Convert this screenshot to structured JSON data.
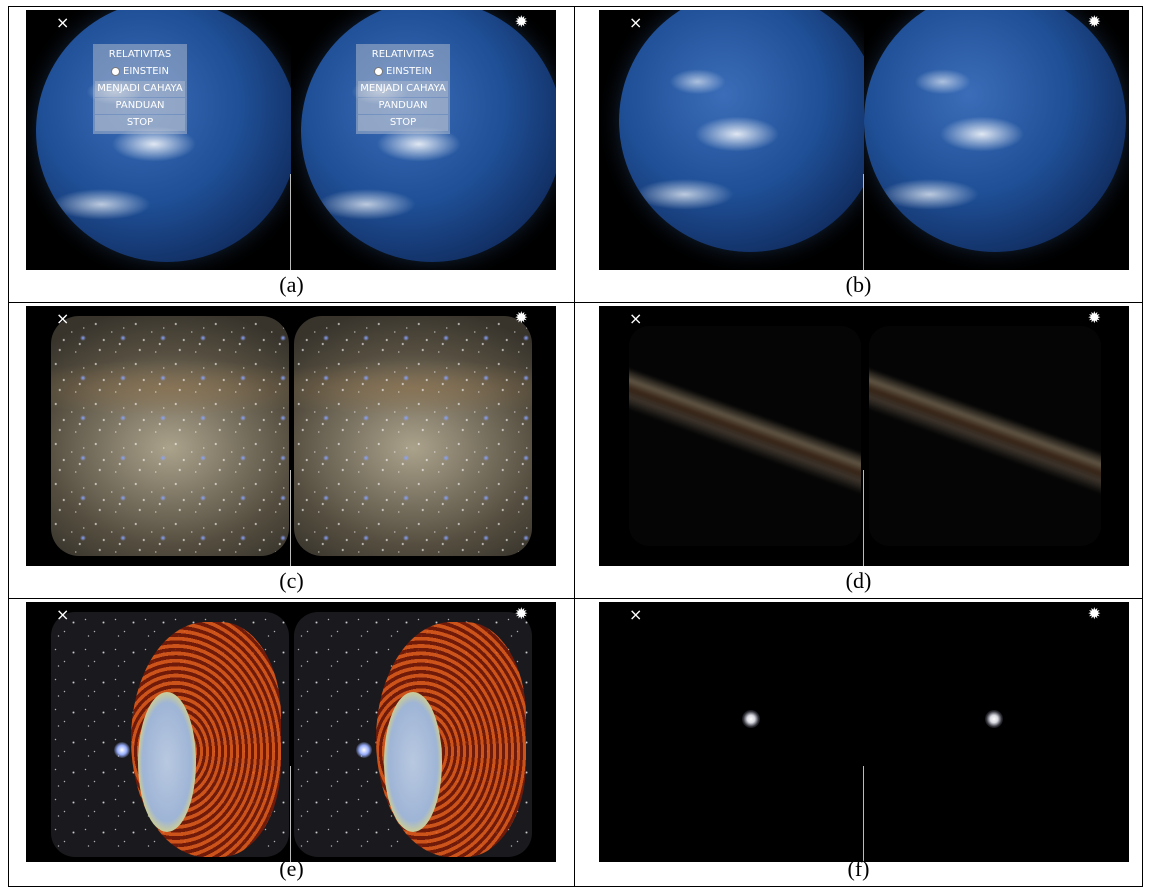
{
  "panels": [
    {
      "id": "a",
      "caption": "(a)",
      "scene": "earth-menu"
    },
    {
      "id": "b",
      "caption": "(b)",
      "scene": "earth"
    },
    {
      "id": "c",
      "caption": "(c)",
      "scene": "starfield"
    },
    {
      "id": "d",
      "caption": "(d)",
      "scene": "galaxy"
    },
    {
      "id": "e",
      "caption": "(e)",
      "scene": "neutron"
    },
    {
      "id": "f",
      "caption": "(f)",
      "scene": "dot"
    }
  ],
  "menu": {
    "title_line1": "RELATIVITAS",
    "title_line2": "EINSTEIN",
    "item1": "MENJADI CAHAYA",
    "item2": "PANDUAN",
    "item3": "STOP"
  },
  "icons": {
    "close": "×",
    "settings": "✹"
  }
}
